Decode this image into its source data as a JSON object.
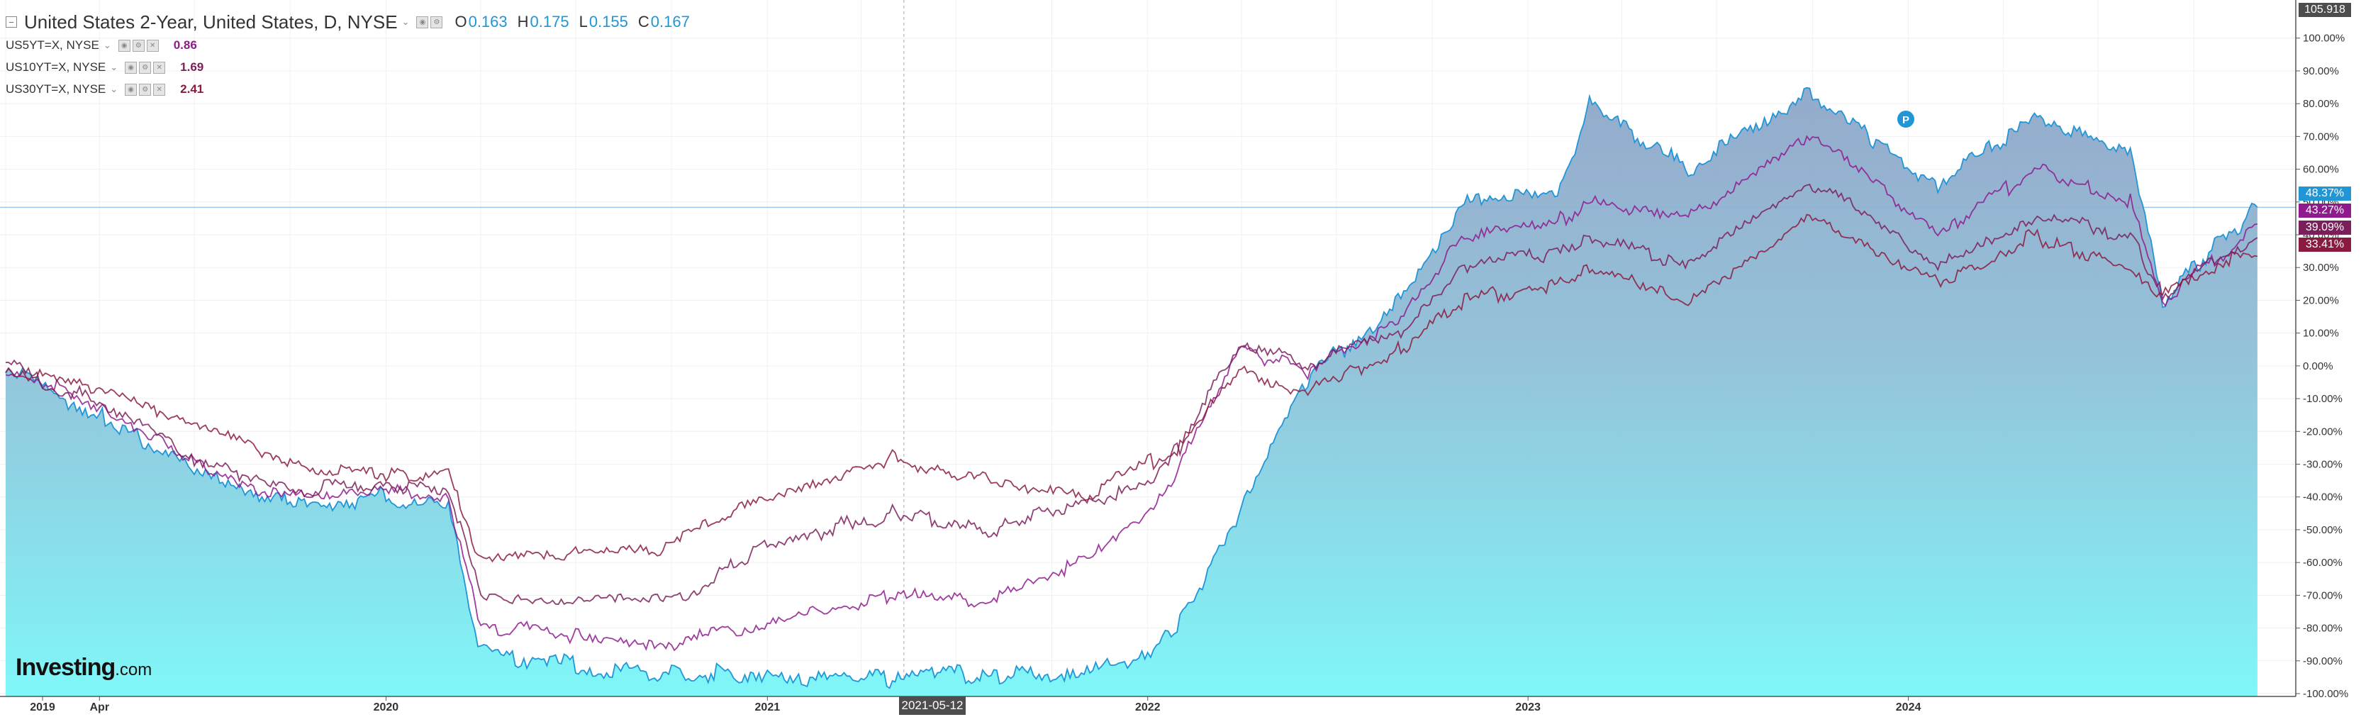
{
  "legend": {
    "main_title": "United States 2-Year, United States, D, NYSE",
    "ohlc": [
      {
        "key": "O",
        "value": "0.163"
      },
      {
        "key": "H",
        "value": "0.175"
      },
      {
        "key": "L",
        "value": "0.155"
      },
      {
        "key": "C",
        "value": "0.167"
      }
    ],
    "series": [
      {
        "label": "US5YT=X, NYSE",
        "value": "0.86",
        "color": "#8e1a8e"
      },
      {
        "label": "US10YT=X, NYSE",
        "value": "1.69",
        "color": "#7b1f5a"
      },
      {
        "label": "US30YT=X, NYSE",
        "value": "2.41",
        "color": "#8b1a40"
      }
    ]
  },
  "logo": {
    "brand": "Investing",
    "suffix": ".com"
  },
  "crosshair": {
    "date_label": "2021-05-12"
  },
  "price_axis": {
    "top_value": "105.918",
    "ticks": [
      "100.00%",
      "90.00%",
      "80.00%",
      "70.00%",
      "60.00%",
      "50.00%",
      "40.00%",
      "30.00%",
      "20.00%",
      "10.00%",
      "0.00%",
      "-10.00%",
      "-20.00%",
      "-30.00%",
      "-40.00%",
      "-50.00%",
      "-60.00%",
      "-70.00%",
      "-80.00%",
      "-90.00%",
      "-100.00%"
    ]
  },
  "time_axis": {
    "labels": [
      "2019",
      "Apr",
      "2020",
      "2021",
      "2022",
      "2023",
      "2024"
    ]
  },
  "last_value_tags": [
    {
      "text": "48.37%",
      "color": "#2196d7"
    },
    {
      "text": "43.27%",
      "color": "#8e1a8e"
    },
    {
      "text": "39.09%",
      "color": "#7b1f5a"
    },
    {
      "text": "33.41%",
      "color": "#8b1a40"
    }
  ],
  "chart_data": {
    "type": "area",
    "x_range": [
      "2019-01",
      "2024-12"
    ],
    "y_unit": "% change",
    "ylim": [
      -105,
      106
    ],
    "series": [
      {
        "name": "United States 2-Year",
        "style": "area",
        "color": "#2196d7",
        "x": [
          "2019-01",
          "2019-04",
          "2019-07",
          "2019-10",
          "2020-01",
          "2020-03",
          "2020-04",
          "2020-07",
          "2020-10",
          "2021-01",
          "2021-05",
          "2021-08",
          "2021-11",
          "2022-01",
          "2022-02",
          "2022-04",
          "2022-06",
          "2022-09",
          "2022-11",
          "2023-02",
          "2023-03",
          "2023-06",
          "2023-10",
          "2023-12",
          "2024-02",
          "2024-05",
          "2024-08",
          "2024-09",
          "2024-11",
          "2024-12"
        ],
        "y": [
          0,
          -15,
          -32,
          -42,
          -40,
          -42,
          -88,
          -92,
          -93,
          -94,
          -95,
          -94,
          -93,
          -88,
          -78,
          -45,
          -5,
          20,
          50,
          55,
          80,
          60,
          83,
          68,
          55,
          75,
          65,
          20,
          40,
          48.37
        ]
      },
      {
        "name": "US5YT=X",
        "style": "line",
        "color": "#8e1a8e",
        "x": [
          "2019-01",
          "2019-04",
          "2019-07",
          "2019-10",
          "2020-01",
          "2020-03",
          "2020-04",
          "2020-07",
          "2020-10",
          "2021-01",
          "2021-05",
          "2021-08",
          "2021-11",
          "2022-01",
          "2022-02",
          "2022-04",
          "2022-06",
          "2022-09",
          "2022-11",
          "2023-02",
          "2023-03",
          "2023-06",
          "2023-10",
          "2023-12",
          "2024-02",
          "2024-05",
          "2024-08",
          "2024-09",
          "2024-11",
          "2024-12"
        ],
        "y": [
          0,
          -12,
          -30,
          -40,
          -38,
          -40,
          -80,
          -82,
          -85,
          -78,
          -70,
          -72,
          -60,
          -45,
          -30,
          5,
          -2,
          15,
          40,
          45,
          50,
          45,
          70,
          55,
          40,
          60,
          50,
          20,
          35,
          43.27
        ]
      },
      {
        "name": "US10YT=X",
        "style": "line",
        "color": "#7b1f5a",
        "x": [
          "2019-01",
          "2019-04",
          "2019-07",
          "2019-10",
          "2020-01",
          "2020-03",
          "2020-04",
          "2020-07",
          "2020-10",
          "2021-01",
          "2021-05",
          "2021-08",
          "2021-11",
          "2022-01",
          "2022-02",
          "2022-04",
          "2022-06",
          "2022-09",
          "2022-11",
          "2023-02",
          "2023-03",
          "2023-06",
          "2023-10",
          "2023-12",
          "2024-02",
          "2024-05",
          "2024-08",
          "2024-09",
          "2024-11",
          "2024-12"
        ],
        "y": [
          0,
          -11,
          -28,
          -38,
          -36,
          -38,
          -70,
          -72,
          -72,
          -55,
          -45,
          -50,
          -42,
          -35,
          -25,
          8,
          0,
          10,
          30,
          35,
          40,
          30,
          55,
          45,
          30,
          45,
          40,
          22,
          35,
          39.09
        ]
      },
      {
        "name": "US30YT=X",
        "style": "line",
        "color": "#8b1a40",
        "x": [
          "2019-01",
          "2019-04",
          "2019-07",
          "2019-10",
          "2020-01",
          "2020-03",
          "2020-04",
          "2020-07",
          "2020-10",
          "2021-01",
          "2021-05",
          "2021-08",
          "2021-11",
          "2022-01",
          "2022-02",
          "2022-04",
          "2022-06",
          "2022-09",
          "2022-11",
          "2023-02",
          "2023-03",
          "2023-06",
          "2023-10",
          "2023-12",
          "2024-02",
          "2024-05",
          "2024-08",
          "2024-09",
          "2024-11",
          "2024-12"
        ],
        "y": [
          0,
          -8,
          -18,
          -30,
          -34,
          -32,
          -60,
          -58,
          -55,
          -40,
          -28,
          -35,
          -40,
          -30,
          -25,
          0,
          -8,
          5,
          20,
          25,
          30,
          20,
          45,
          35,
          25,
          40,
          30,
          22,
          32,
          33.41
        ]
      }
    ]
  }
}
